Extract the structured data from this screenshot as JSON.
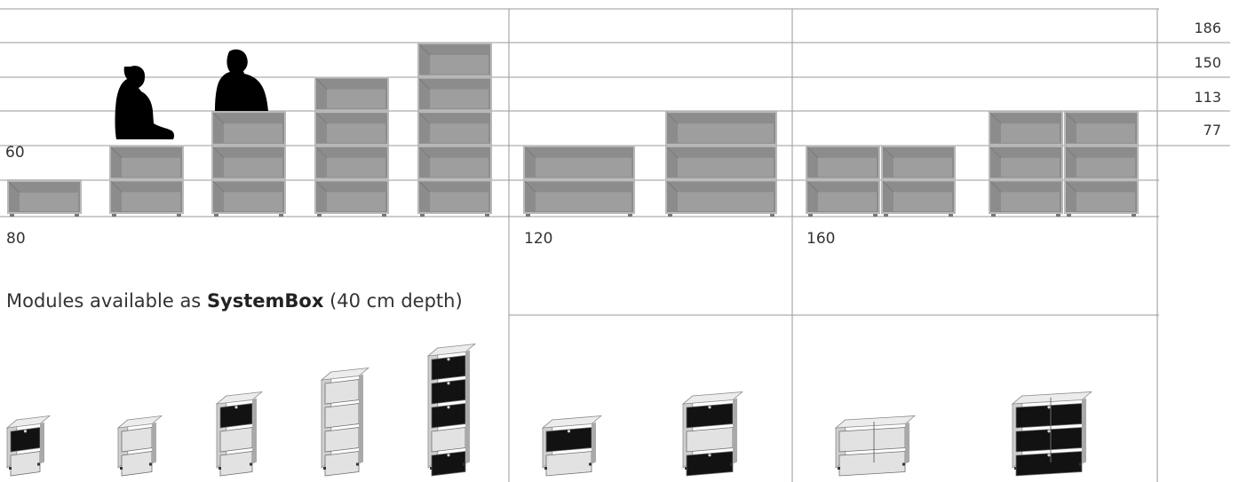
{
  "heights": [
    "186",
    "150",
    "113",
    "77"
  ],
  "small_height_label": "60",
  "widths": [
    "80",
    "120",
    "160"
  ],
  "caption": {
    "prefix": "Modules available as ",
    "brand": "SystemBox",
    "suffix": " (40 cm depth)"
  },
  "colors": {
    "line": "#9a9a9a",
    "shelf_frame": "#b9b9b9",
    "shelf_panel": "#8c8c8c",
    "shelf_inner": "#9e9e9e",
    "iso_side": "#cfcfcf",
    "iso_top": "#ececec",
    "iso_front": "#e2e2e2",
    "door": "#121212",
    "silhouette": "#000000"
  },
  "front_modules": [
    {
      "group": "80",
      "cols": 1,
      "rows": 2,
      "short": true,
      "figure": ""
    },
    {
      "group": "80",
      "cols": 1,
      "rows": 2,
      "short": false,
      "figure": "person-seated"
    },
    {
      "group": "80",
      "cols": 1,
      "rows": 3,
      "short": false,
      "figure": "person-standing"
    },
    {
      "group": "80",
      "cols": 1,
      "rows": 4,
      "short": false,
      "figure": ""
    },
    {
      "group": "80",
      "cols": 1,
      "rows": 5,
      "short": false,
      "figure": ""
    },
    {
      "group": "120",
      "cols": 1,
      "rows": 2,
      "short": false,
      "figure": ""
    },
    {
      "group": "120",
      "cols": 1,
      "rows": 3,
      "short": false,
      "figure": ""
    },
    {
      "group": "160",
      "cols": 2,
      "rows": 2,
      "short": false,
      "figure": ""
    },
    {
      "group": "160",
      "cols": 2,
      "rows": 3,
      "short": false,
      "figure": ""
    }
  ],
  "iso_modules": [
    {
      "group": "80",
      "rows": 2,
      "doors": [
        true,
        false
      ]
    },
    {
      "group": "80",
      "rows": 2,
      "doors": [
        false,
        false
      ]
    },
    {
      "group": "80",
      "rows": 3,
      "doors": [
        true,
        false,
        false
      ]
    },
    {
      "group": "80",
      "rows": 4,
      "doors": [
        false,
        false,
        false,
        false
      ]
    },
    {
      "group": "80",
      "rows": 5,
      "doors": [
        true,
        true,
        true,
        false,
        true
      ]
    },
    {
      "group": "120",
      "rows": 2,
      "doors": [
        true,
        false
      ]
    },
    {
      "group": "120",
      "rows": 3,
      "doors": [
        true,
        false,
        true
      ]
    },
    {
      "group": "160",
      "rows": 2,
      "doors": [
        false,
        false
      ]
    },
    {
      "group": "160",
      "rows": 3,
      "doors": [
        true,
        true,
        true
      ]
    }
  ]
}
